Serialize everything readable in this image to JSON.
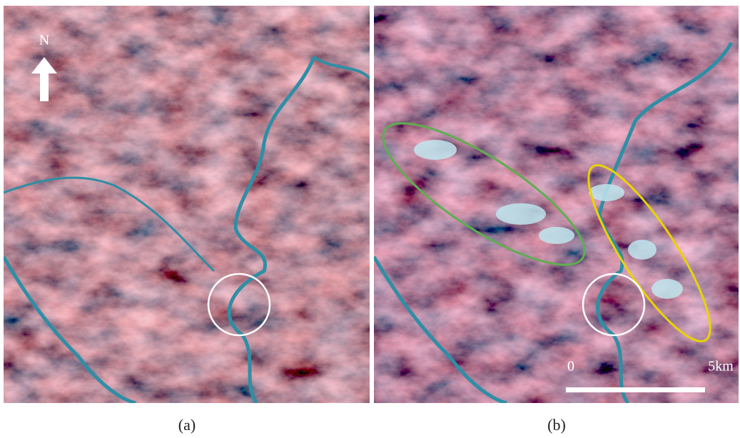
{
  "panels": [
    {
      "label": "(a)",
      "north_label": "N"
    },
    {
      "label": "(b)",
      "scale_bar": {
        "start": "0",
        "end": "5km"
      }
    }
  ]
}
